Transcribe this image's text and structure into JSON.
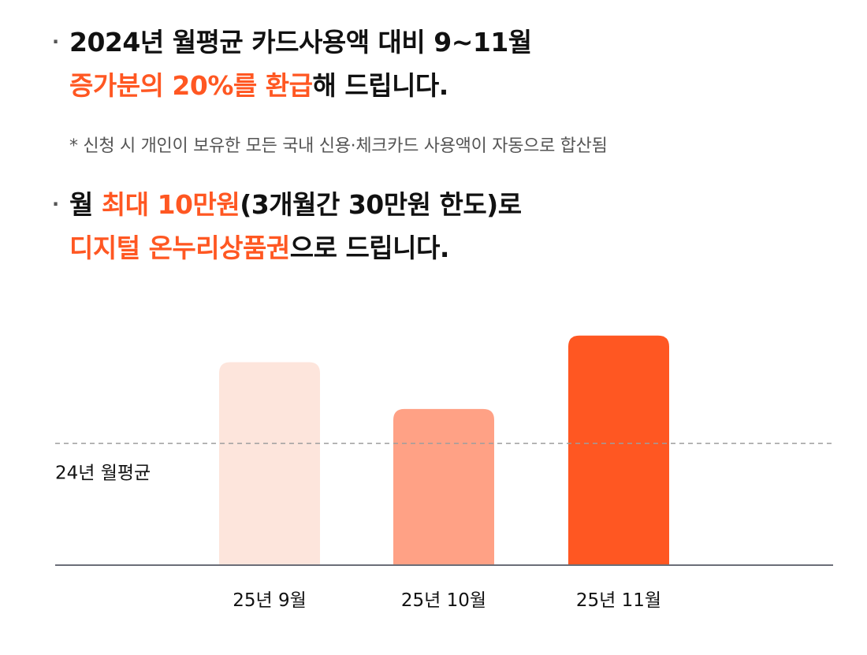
{
  "section1": {
    "bullet": "·",
    "line1": "2024년 월평균 카드사용액 대비 9~11월",
    "line2_accent": "증가분의 20%를 환급",
    "line2_rest": "해 드립니다."
  },
  "note": "* 신청 시 개인이 보유한 모든 국내 신용·체크카드 사용액이 자동으로 합산됨",
  "section2": {
    "bullet": "·",
    "line1_pre": "월 ",
    "line1_accent": "최대 10만원",
    "line1_rest": "(3개월간 30만원 한도)로",
    "line2_accent": "디지털 온누리상품권",
    "line2_rest": "으로 드립니다."
  },
  "chart_data": {
    "type": "bar",
    "categories": [
      "25년 9월",
      "25년 10월",
      "25년 11월"
    ],
    "values": [
      130,
      100,
      147
    ],
    "baseline": {
      "label": "24년 월평균",
      "value": 78
    },
    "ylim": [
      0,
      160
    ],
    "colors": [
      "#fde5dc",
      "#ffa185",
      "#ff5722"
    ],
    "grid": false,
    "title": "",
    "xlabel": "",
    "ylabel": ""
  }
}
